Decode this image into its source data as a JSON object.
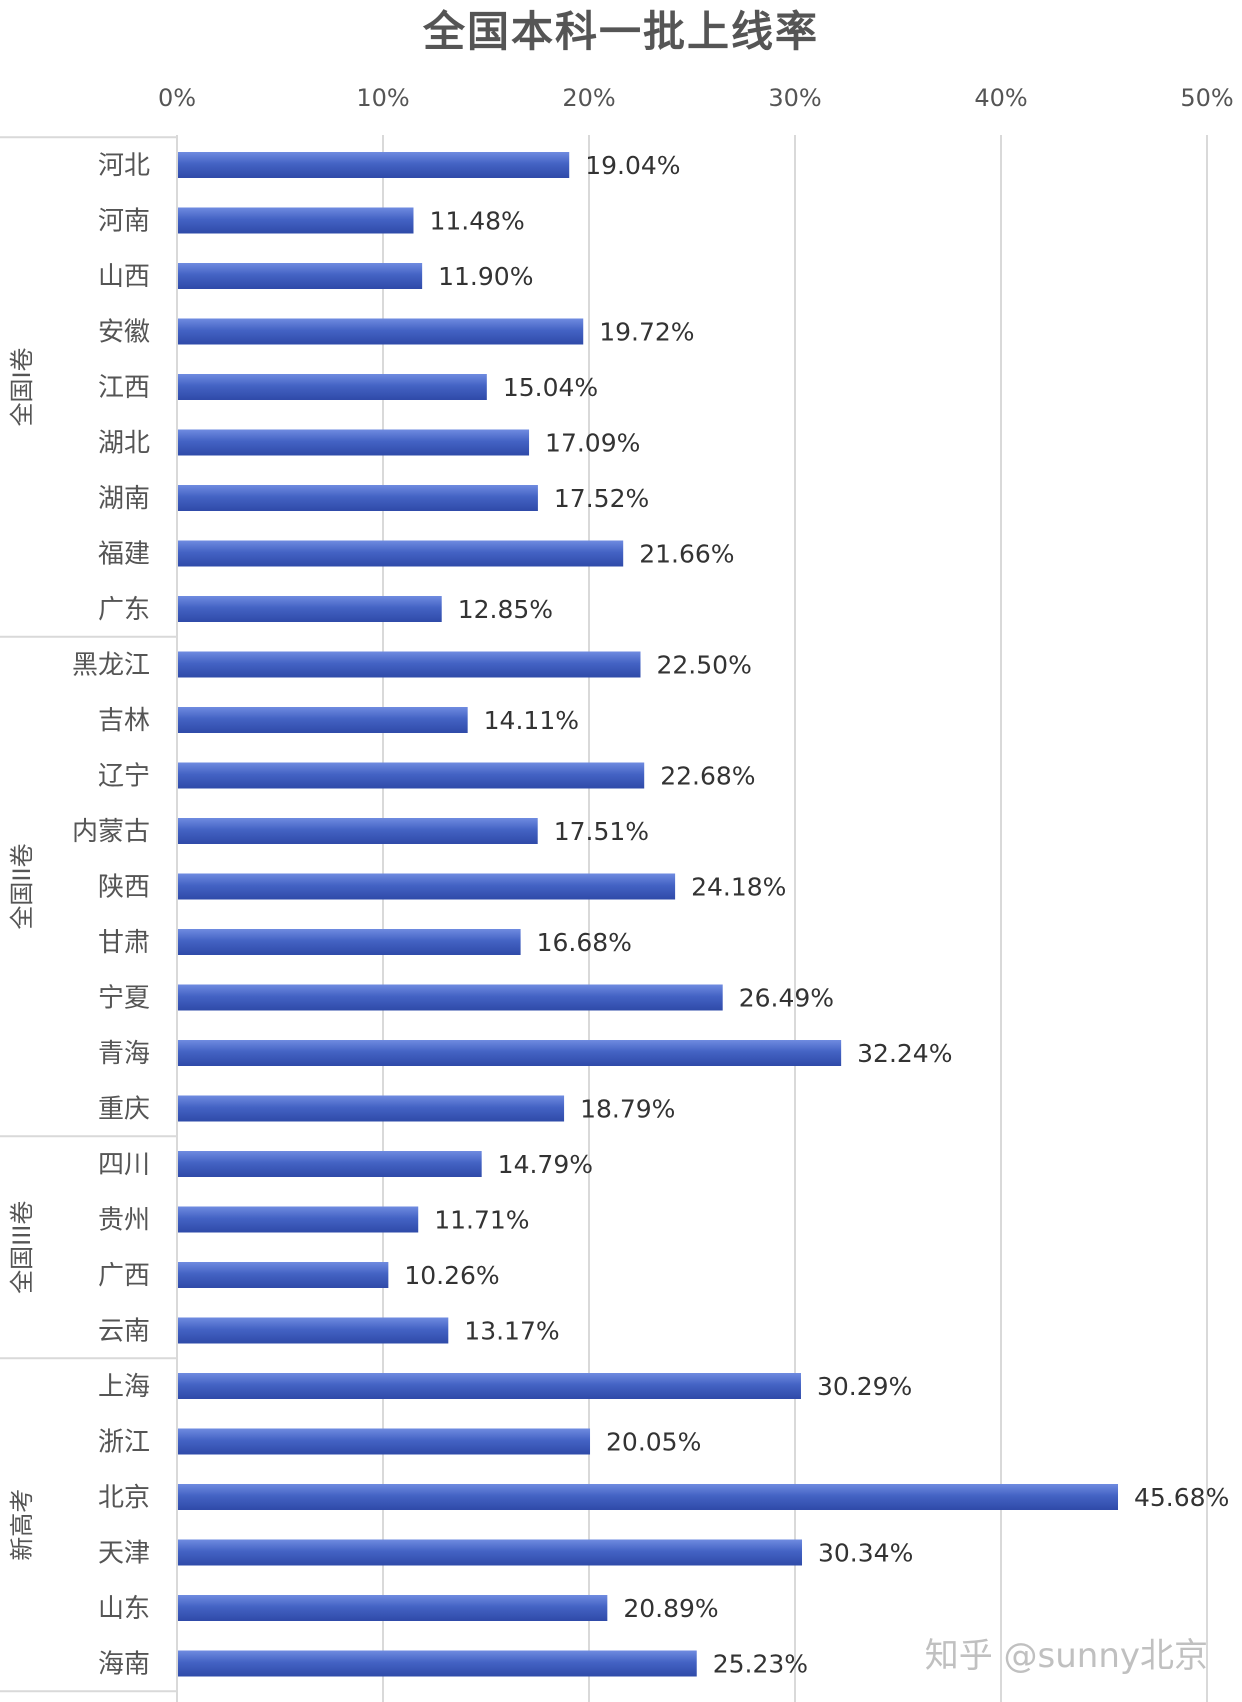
{
  "chart_data": {
    "type": "bar",
    "orientation": "horizontal",
    "title": "全国本科一批上线率",
    "xlim": [
      0,
      50
    ],
    "x_ticks": [
      "0%",
      "10%",
      "20%",
      "30%",
      "40%",
      "50%"
    ],
    "x_tick_values": [
      0,
      10,
      20,
      30,
      40,
      50
    ],
    "grid": true,
    "bar_color": "#4463C4",
    "categories": [
      "河北",
      "河南",
      "山西",
      "安徽",
      "江西",
      "湖北",
      "湖南",
      "福建",
      "广东",
      "黑龙江",
      "吉林",
      "辽宁",
      "内蒙古",
      "陕西",
      "甘肃",
      "宁夏",
      "青海",
      "重庆",
      "四川",
      "贵州",
      "广西",
      "云南",
      "上海",
      "浙江",
      "北京",
      "天津",
      "山东",
      "海南"
    ],
    "values": [
      19.04,
      11.48,
      11.9,
      19.72,
      15.04,
      17.09,
      17.52,
      21.66,
      12.85,
      22.5,
      14.11,
      22.68,
      17.51,
      24.18,
      16.68,
      26.49,
      32.24,
      18.79,
      14.79,
      11.71,
      10.26,
      13.17,
      30.29,
      20.05,
      45.68,
      30.34,
      20.89,
      25.23
    ],
    "value_labels": [
      "19.04%",
      "11.48%",
      "11.90%",
      "19.72%",
      "15.04%",
      "17.09%",
      "17.52%",
      "21.66%",
      "12.85%",
      "22.50%",
      "14.11%",
      "22.68%",
      "17.51%",
      "24.18%",
      "16.68%",
      "26.49%",
      "32.24%",
      "18.79%",
      "14.79%",
      "11.71%",
      "10.26%",
      "13.17%",
      "30.29%",
      "20.05%",
      "45.68%",
      "30.34%",
      "20.89%",
      "25.23%"
    ],
    "groups": [
      {
        "name": "全国I卷",
        "start": 0,
        "end": 8
      },
      {
        "name": "全国II卷",
        "start": 9,
        "end": 17
      },
      {
        "name": "全国III卷",
        "start": 18,
        "end": 21
      },
      {
        "name": "新高考",
        "start": 22,
        "end": 27
      }
    ]
  },
  "watermark": "知乎 @sunny北京"
}
